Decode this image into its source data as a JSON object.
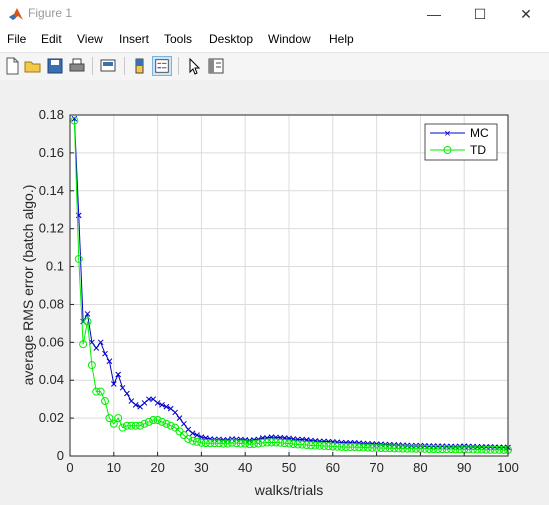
{
  "window": {
    "title": "Figure 1",
    "minimize_glyph": "—",
    "maximize_glyph": "☐",
    "close_glyph": "✕"
  },
  "menu": [
    "File",
    "Edit",
    "View",
    "Insert",
    "Tools",
    "Desktop",
    "Window",
    "Help"
  ],
  "toolbar": {
    "icons": [
      "new-figure-icon",
      "open-file-icon",
      "save-icon",
      "print-icon",
      "link-plot-icon",
      "colorbar-icon",
      "legend-icon",
      "edit-plot-icon",
      "property-inspector-icon"
    ]
  },
  "chart_data": {
    "type": "line",
    "xlabel": "walks/trials",
    "ylabel": "average RMS error (batch algo.)",
    "xlim": [
      0,
      100
    ],
    "ylim": [
      0,
      0.18
    ],
    "xticks": [
      0,
      10,
      20,
      30,
      40,
      50,
      60,
      70,
      80,
      90,
      100
    ],
    "yticks": [
      0,
      0.02,
      0.04,
      0.06,
      0.08,
      0.1,
      0.12,
      0.14,
      0.16,
      0.18
    ],
    "ytick_labels": [
      "0",
      "0.02",
      "0.04",
      "0.06",
      "0.08",
      "0.1",
      "0.12",
      "0.14",
      "0.16",
      "0.18"
    ],
    "grid": true,
    "legend_position": "top-right",
    "x": [
      1,
      2,
      3,
      4,
      5,
      6,
      7,
      8,
      9,
      10,
      11,
      12,
      13,
      14,
      15,
      16,
      17,
      18,
      19,
      20,
      21,
      22,
      23,
      24,
      25,
      26,
      27,
      28,
      29,
      30,
      31,
      32,
      33,
      34,
      35,
      36,
      37,
      38,
      39,
      40,
      41,
      42,
      43,
      44,
      45,
      46,
      47,
      48,
      49,
      50,
      51,
      52,
      53,
      54,
      55,
      56,
      57,
      58,
      59,
      60,
      61,
      62,
      63,
      64,
      65,
      66,
      67,
      68,
      69,
      70,
      71,
      72,
      73,
      74,
      75,
      76,
      77,
      78,
      79,
      80,
      81,
      82,
      83,
      84,
      85,
      86,
      87,
      88,
      89,
      90,
      91,
      92,
      93,
      94,
      95,
      96,
      97,
      98,
      99,
      100
    ],
    "series": [
      {
        "name": "MC",
        "color": "#0000cc",
        "marker": "x",
        "values": [
          0.178,
          0.127,
          0.071,
          0.075,
          0.06,
          0.057,
          0.06,
          0.054,
          0.05,
          0.038,
          0.043,
          0.036,
          0.033,
          0.029,
          0.027,
          0.026,
          0.028,
          0.03,
          0.03,
          0.028,
          0.027,
          0.026,
          0.025,
          0.023,
          0.02,
          0.017,
          0.014,
          0.012,
          0.011,
          0.01,
          0.0095,
          0.009,
          0.0088,
          0.0088,
          0.0085,
          0.0085,
          0.009,
          0.0088,
          0.0087,
          0.0085,
          0.0082,
          0.0085,
          0.0088,
          0.0095,
          0.0095,
          0.01,
          0.0098,
          0.0097,
          0.0095,
          0.0093,
          0.009,
          0.0088,
          0.0087,
          0.0085,
          0.0082,
          0.008,
          0.0078,
          0.0077,
          0.0076,
          0.0075,
          0.0073,
          0.0071,
          0.007,
          0.007,
          0.007,
          0.0068,
          0.0066,
          0.0065,
          0.0064,
          0.0063,
          0.0062,
          0.0061,
          0.006,
          0.0059,
          0.0058,
          0.0057,
          0.0056,
          0.0055,
          0.0055,
          0.0055,
          0.0054,
          0.0053,
          0.0053,
          0.0052,
          0.0052,
          0.0051,
          0.0051,
          0.005,
          0.0051,
          0.0052,
          0.0051,
          0.005,
          0.0049,
          0.0049,
          0.0048,
          0.0048,
          0.0047,
          0.0046,
          0.0046,
          0.0045
        ]
      },
      {
        "name": "TD",
        "color": "#00ee00",
        "marker": "o",
        "values": [
          0.177,
          0.104,
          0.059,
          0.071,
          0.048,
          0.034,
          0.034,
          0.029,
          0.02,
          0.017,
          0.02,
          0.015,
          0.016,
          0.016,
          0.016,
          0.016,
          0.017,
          0.018,
          0.019,
          0.019,
          0.018,
          0.017,
          0.016,
          0.015,
          0.013,
          0.011,
          0.009,
          0.008,
          0.0075,
          0.007,
          0.0068,
          0.0067,
          0.0068,
          0.0067,
          0.0065,
          0.0065,
          0.007,
          0.0068,
          0.0066,
          0.0065,
          0.0062,
          0.0064,
          0.0066,
          0.007,
          0.0071,
          0.0072,
          0.0071,
          0.007,
          0.0068,
          0.0066,
          0.0063,
          0.0061,
          0.006,
          0.0058,
          0.0056,
          0.0055,
          0.0054,
          0.0053,
          0.0052,
          0.005,
          0.0049,
          0.0048,
          0.0047,
          0.0047,
          0.0047,
          0.0046,
          0.0045,
          0.0044,
          0.0043,
          0.0043,
          0.0042,
          0.0041,
          0.0041,
          0.004,
          0.004,
          0.0039,
          0.0039,
          0.0039,
          0.0038,
          0.0038,
          0.0038,
          0.0037,
          0.0037,
          0.0037,
          0.0036,
          0.0036,
          0.0036,
          0.0035,
          0.0035,
          0.0035,
          0.0035,
          0.0034,
          0.0034,
          0.0034,
          0.0033,
          0.0033,
          0.0033,
          0.0033,
          0.0032,
          0.0032
        ]
      }
    ]
  }
}
